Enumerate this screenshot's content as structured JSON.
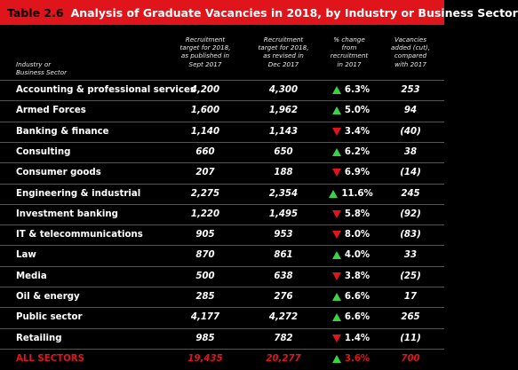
{
  "title": {
    "number": "Table 2.6",
    "text": "Analysis of Graduate Vacancies in 2018, by Industry or Business Sector"
  },
  "headers": {
    "label": [
      "Industry or",
      "Business Sector"
    ],
    "c1": [
      "Recruitment",
      "target for 2018,",
      "as published in",
      "Sept 2017"
    ],
    "c2": [
      "Recruitment",
      "target for 2018,",
      "as revised in",
      "Dec 2017"
    ],
    "c3": [
      "% change",
      "from",
      "recruitment",
      "in 2017"
    ],
    "c4": [
      "Vacancies",
      "added (cut),",
      "compared",
      "with 2017"
    ]
  },
  "rows": [
    {
      "name": "Accounting & professional services",
      "v1": "4,200",
      "v2": "4,300",
      "dir": "up",
      "pct": "6.3%",
      "v4": "253"
    },
    {
      "name": "Armed Forces",
      "v1": "1,600",
      "v2": "1,962",
      "dir": "up",
      "pct": "5.0%",
      "v4": "94"
    },
    {
      "name": "Banking & finance",
      "v1": "1,140",
      "v2": "1,143",
      "dir": "down",
      "pct": "3.4%",
      "v4": "(40)"
    },
    {
      "name": "Consulting",
      "v1": "660",
      "v2": "650",
      "dir": "up",
      "pct": "6.2%",
      "v4": "38"
    },
    {
      "name": "Consumer goods",
      "v1": "207",
      "v2": "188",
      "dir": "down",
      "pct": "6.9%",
      "v4": "(14)"
    },
    {
      "name": "Engineering & industrial",
      "v1": "2,275",
      "v2": "2,354",
      "dir": "up",
      "pct": "11.6%",
      "v4": "245"
    },
    {
      "name": "Investment banking",
      "v1": "1,220",
      "v2": "1,495",
      "dir": "down",
      "pct": "5.8%",
      "v4": "(92)"
    },
    {
      "name": "IT & telecommunications",
      "v1": "905",
      "v2": "953",
      "dir": "down",
      "pct": "8.0%",
      "v4": "(83)"
    },
    {
      "name": "Law",
      "v1": "870",
      "v2": "861",
      "dir": "up",
      "pct": "4.0%",
      "v4": "33"
    },
    {
      "name": "Media",
      "v1": "500",
      "v2": "638",
      "dir": "down",
      "pct": "3.8%",
      "v4": "(25)"
    },
    {
      "name": "Oil & energy",
      "v1": "285",
      "v2": "276",
      "dir": "up",
      "pct": "6.6%",
      "v4": "17"
    },
    {
      "name": "Public sector",
      "v1": "4,177",
      "v2": "4,272",
      "dir": "up",
      "pct": "6.6%",
      "v4": "265"
    },
    {
      "name": "Retailing",
      "v1": "985",
      "v2": "782",
      "dir": "down",
      "pct": "1.4%",
      "v4": "(11)"
    },
    {
      "name": "ALL SECTORS",
      "v1": "19,435",
      "v2": "20,277",
      "dir": "up",
      "pct": "3.6%",
      "v4": "700",
      "total": true
    }
  ],
  "colors": {
    "title_bg": "#e0141b",
    "background": "#000000",
    "up": "#3bd24a",
    "down": "#e0141b",
    "total_text": "#e0141b"
  }
}
